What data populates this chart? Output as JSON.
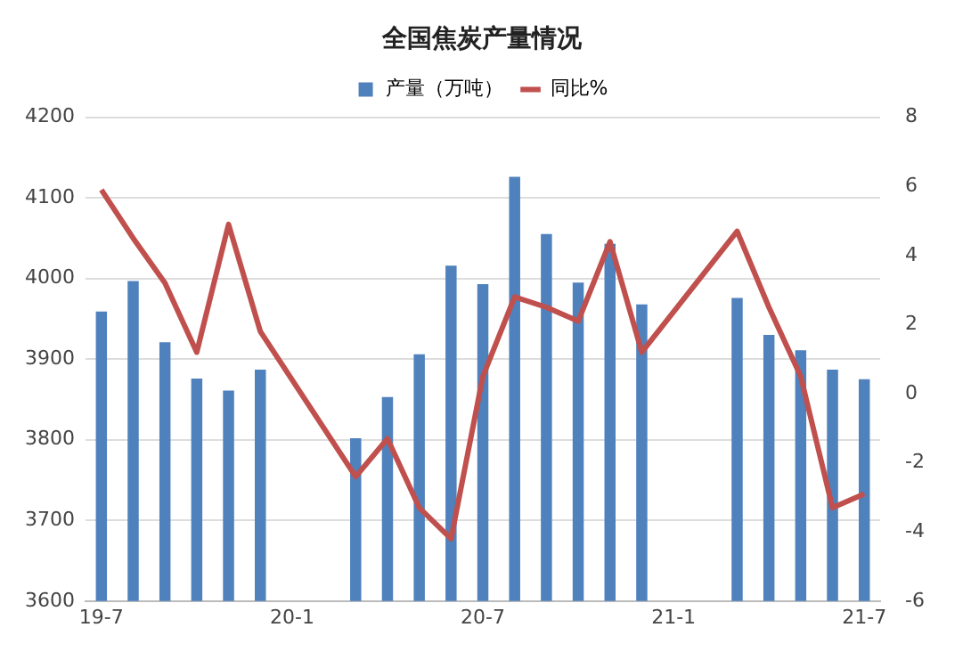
{
  "chart_data": {
    "type": "bar",
    "title": "全国焦炭产量情况",
    "categories": [
      "19-7",
      null,
      null,
      null,
      null,
      null,
      "20-1",
      null,
      null,
      null,
      null,
      null,
      "20-7",
      null,
      null,
      null,
      null,
      null,
      "21-1",
      null,
      null,
      null,
      null,
      null,
      "21-7"
    ],
    "series": [
      {
        "name": "产量（万吨）",
        "color": "#4f81bd",
        "values": [
          3959,
          3997,
          3921,
          3876,
          3861,
          3887,
          null,
          null,
          3802,
          3853,
          3906,
          4016,
          3993,
          4126,
          4055,
          3995,
          4043,
          3968,
          null,
          null,
          3976,
          3930,
          3911,
          3887,
          3875
        ]
      },
      {
        "name": "同比%",
        "type": "line",
        "axis": "y2",
        "color": "#c0504d",
        "values": [
          5.9,
          4.5,
          3.2,
          1.2,
          4.9,
          1.8,
          null,
          null,
          -2.4,
          -1.3,
          -3.3,
          -4.2,
          0.5,
          2.8,
          2.5,
          2.1,
          4.4,
          1.2,
          null,
          null,
          4.7,
          2.5,
          0.5,
          -3.3,
          -2.9
        ]
      }
    ],
    "ylim": [
      3600,
      4200
    ],
    "yticks": [
      3600,
      3700,
      3800,
      3900,
      4000,
      4100,
      4200
    ],
    "y2lim": [
      -6,
      8
    ],
    "y2ticks": [
      -6,
      -4,
      -2,
      0,
      2,
      4,
      6,
      8
    ],
    "grid": "y",
    "legend": "top",
    "marker": "none"
  }
}
